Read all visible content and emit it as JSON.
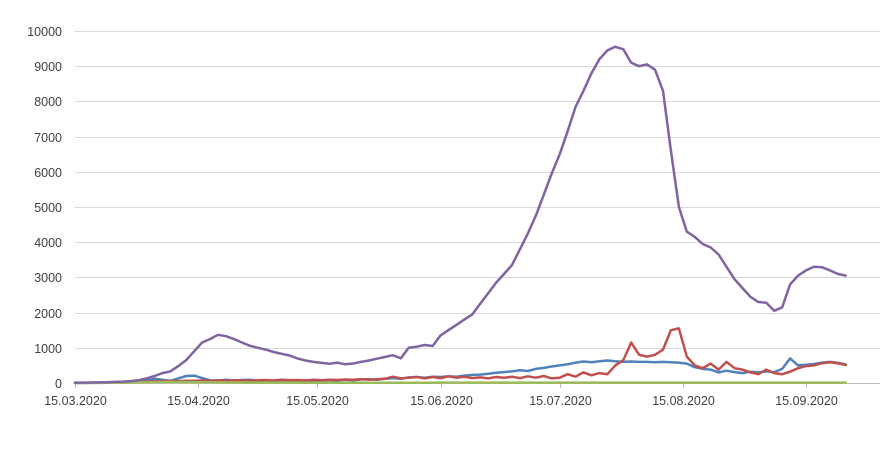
{
  "chart_data": {
    "type": "line",
    "title": "",
    "legend": "none",
    "grid": true,
    "background": "#ffffff",
    "gridline_color": "#d9d9d9",
    "axis_line_color": "#bfbfbf",
    "label_color": "#404040",
    "y_axis": {
      "min": 0,
      "max": 10000,
      "step": 1000,
      "tick_labels": [
        "0",
        "1000",
        "2000",
        "3000",
        "4000",
        "5000",
        "6000",
        "7000",
        "8000",
        "9000",
        "10000"
      ]
    },
    "x_axis": {
      "start_label": "15.03.2020",
      "ticks": [
        {
          "label": "15.03.2020",
          "day": 0
        },
        {
          "label": "15.04.2020",
          "day": 31
        },
        {
          "label": "15.05.2020",
          "day": 61
        },
        {
          "label": "15.06.2020",
          "day": 92
        },
        {
          "label": "15.07.2020",
          "day": 122
        },
        {
          "label": "15.08.2020",
          "day": 153
        },
        {
          "label": "15.09.2020",
          "day": 184
        }
      ],
      "axis_max_day": 203
    },
    "sample_step_days": 2,
    "series": [
      {
        "name": "blue",
        "color": "#4F81BD",
        "values": [
          2,
          3,
          5,
          8,
          10,
          15,
          20,
          25,
          40,
          70,
          120,
          90,
          60,
          130,
          200,
          210,
          140,
          80,
          70,
          90,
          70,
          85,
          95,
          70,
          80,
          65,
          75,
          85,
          70,
          80,
          75,
          70,
          85,
          75,
          90,
          80,
          100,
          110,
          95,
          120,
          140,
          120,
          160,
          170,
          150,
          180,
          170,
          190,
          180,
          210,
          230,
          240,
          260,
          290,
          310,
          330,
          360,
          340,
          400,
          430,
          470,
          500,
          530,
          580,
          610,
          590,
          620,
          640,
          620,
          600,
          610,
          600,
          600,
          590,
          600,
          590,
          580,
          550,
          450,
          400,
          380,
          300,
          350,
          310,
          280,
          320,
          300,
          330,
          310,
          400,
          700,
          500,
          520,
          540,
          580,
          600,
          570,
          530
        ]
      },
      {
        "name": "red",
        "color": "#C0504D",
        "values": [
          1,
          2,
          3,
          5,
          8,
          10,
          15,
          20,
          30,
          40,
          50,
          55,
          60,
          55,
          65,
          60,
          70,
          60,
          75,
          65,
          80,
          70,
          65,
          75,
          85,
          70,
          90,
          75,
          85,
          70,
          90,
          80,
          95,
          85,
          100,
          90,
          110,
          95,
          105,
          120,
          180,
          130,
          150,
          170,
          130,
          170,
          140,
          190,
          150,
          180,
          140,
          160,
          130,
          170,
          150,
          180,
          140,
          190,
          150,
          200,
          130,
          150,
          250,
          180,
          300,
          220,
          280,
          250,
          500,
          650,
          1150,
          800,
          750,
          800,
          950,
          1500,
          1550,
          750,
          500,
          420,
          550,
          380,
          600,
          420,
          380,
          300,
          250,
          380,
          280,
          250,
          320,
          420,
          480,
          500,
          560,
          590,
          560,
          510
        ]
      },
      {
        "name": "green",
        "color": "#9BBB59",
        "values": [
          1,
          1,
          2,
          3,
          5,
          8,
          10,
          14,
          18,
          22,
          25,
          28,
          30,
          28,
          25,
          22,
          20,
          18,
          16,
          15,
          14,
          13,
          12,
          12,
          11,
          11,
          10,
          10,
          10,
          9,
          9,
          9,
          8,
          8,
          8,
          8,
          8,
          8,
          8,
          9,
          9,
          9,
          9,
          9,
          9,
          9,
          10,
          10,
          10,
          10,
          10,
          10,
          10,
          10,
          10,
          10,
          10,
          10,
          10,
          10,
          10,
          10,
          10,
          10,
          10,
          10,
          10,
          10,
          10,
          10,
          10,
          10,
          10,
          10,
          10,
          10,
          10,
          10,
          10,
          10,
          10,
          10,
          10,
          10,
          10,
          10,
          10,
          10,
          10,
          10,
          10,
          10,
          10,
          10,
          10,
          10,
          10,
          10
        ]
      },
      {
        "name": "purple",
        "color": "#8064A2",
        "values": [
          10,
          12,
          15,
          18,
          22,
          30,
          40,
          55,
          80,
          130,
          200,
          280,
          330,
          480,
          650,
          900,
          1150,
          1250,
          1370,
          1330,
          1250,
          1150,
          1060,
          1000,
          950,
          880,
          830,
          780,
          700,
          640,
          600,
          570,
          545,
          580,
          530,
          555,
          600,
          640,
          690,
          740,
          790,
          700,
          1000,
          1030,
          1080,
          1050,
          1350,
          1500,
          1650,
          1800,
          1950,
          2250,
          2550,
          2850,
          3100,
          3350,
          3800,
          4250,
          4750,
          5350,
          5950,
          6500,
          7150,
          7850,
          8300,
          8800,
          9200,
          9450,
          9550,
          9480,
          9100,
          9000,
          9050,
          8900,
          8300,
          6600,
          5000,
          4300,
          4150,
          3950,
          3850,
          3650,
          3300,
          2950,
          2700,
          2450,
          2300,
          2280,
          2050,
          2150,
          2800,
          3050,
          3200,
          3300,
          3290,
          3200,
          3100,
          3050
        ]
      }
    ]
  }
}
